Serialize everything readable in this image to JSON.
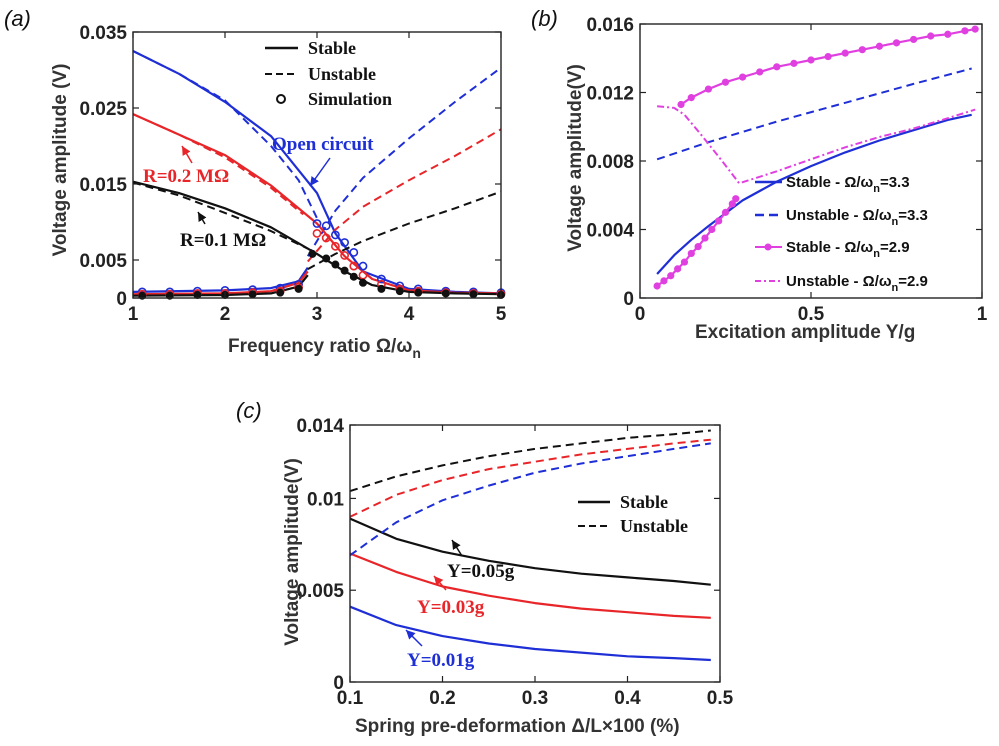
{
  "chart_data": [
    {
      "panel": "(a)",
      "type": "line",
      "xlabel": "Frequency ratio Ω/ω",
      "xlabel_sub": "n",
      "ylabel": "Voltage amplitude (V)",
      "xlim": [
        1,
        5
      ],
      "ylim": [
        0,
        0.035
      ],
      "xticks": [
        "1",
        "2",
        "3",
        "4",
        "5"
      ],
      "xtick_values": [
        1,
        2,
        3,
        4,
        5
      ],
      "yticks": [
        "0",
        "0.005",
        "0.015",
        "0.025",
        "0.035"
      ],
      "ytick_values": [
        0,
        0.005,
        0.015,
        0.025,
        0.035
      ],
      "legend": {
        "placement": "top-center",
        "entries": [
          {
            "label": "Stable",
            "style": "solid"
          },
          {
            "label": "Unstable",
            "style": "dashed"
          },
          {
            "label": "Simulation",
            "style": "circle"
          }
        ]
      },
      "annotations": [
        {
          "text": "Open circuit",
          "color": "#1f2fd6"
        },
        {
          "text": "R=0.2 MΩ",
          "color": "#e8262a"
        },
        {
          "text": "R=0.1 MΩ",
          "color": "#111111"
        }
      ],
      "series": [
        {
          "color": "#1f2fd6",
          "style": "dashed",
          "x": [
            1,
            1.5,
            2,
            2.5,
            2.8,
            3.0
          ],
          "y": [
            0.0325,
            0.0295,
            0.026,
            0.02,
            0.0155,
            0.0105
          ]
        },
        {
          "color": "#1f2fd6",
          "style": "solid",
          "x": [
            1,
            1.5,
            2,
            2.5,
            3,
            3.2,
            3.5,
            4,
            4.5,
            5
          ],
          "y": [
            0.0325,
            0.0295,
            0.0258,
            0.0213,
            0.0138,
            0.0085,
            0.0035,
            0.0012,
            0.0008,
            0.0006
          ]
        },
        {
          "color": "#1f2fd6",
          "style": "dashed",
          "x": [
            2.9,
            3.2,
            3.5,
            4,
            4.5,
            5
          ],
          "y": [
            0.0055,
            0.0115,
            0.0158,
            0.021,
            0.0258,
            0.0303
          ]
        },
        {
          "color": "#1f2fd6",
          "style": "solid",
          "x": [
            1,
            2,
            2.5,
            2.8,
            2.9
          ],
          "y": [
            0.0008,
            0.001,
            0.0013,
            0.0022,
            0.004
          ]
        },
        {
          "color": "#e8262a",
          "style": "dashed",
          "x": [
            1,
            1.5,
            2,
            2.5,
            2.85
          ],
          "y": [
            0.0242,
            0.0215,
            0.0185,
            0.0145,
            0.011
          ]
        },
        {
          "color": "#e8262a",
          "style": "solid",
          "x": [
            1,
            1.5,
            2,
            2.5,
            3,
            3.3,
            3.6,
            4,
            4.5,
            5
          ],
          "y": [
            0.0242,
            0.0215,
            0.0188,
            0.0148,
            0.0098,
            0.0055,
            0.0025,
            0.001,
            0.0007,
            0.0006
          ]
        },
        {
          "color": "#e8262a",
          "style": "dashed",
          "x": [
            2.9,
            3.2,
            3.5,
            4,
            4.5,
            5
          ],
          "y": [
            0.0048,
            0.009,
            0.012,
            0.0155,
            0.0187,
            0.0222
          ]
        },
        {
          "color": "#e8262a",
          "style": "solid",
          "x": [
            1,
            2,
            2.5,
            2.8,
            2.9
          ],
          "y": [
            0.0005,
            0.0006,
            0.0009,
            0.002,
            0.0035
          ]
        },
        {
          "color": "#111111",
          "style": "dashed",
          "x": [
            1,
            1.5,
            2,
            2.5,
            2.9
          ],
          "y": [
            0.0152,
            0.0135,
            0.0112,
            0.0088,
            0.0065
          ]
        },
        {
          "color": "#111111",
          "style": "solid",
          "x": [
            1,
            1.5,
            2,
            2.5,
            3,
            3.3,
            3.6,
            4,
            4.5,
            5
          ],
          "y": [
            0.0153,
            0.0138,
            0.0118,
            0.0093,
            0.0058,
            0.0035,
            0.0017,
            0.0008,
            0.0006,
            0.0005
          ]
        },
        {
          "color": "#111111",
          "style": "dashed",
          "x": [
            2.9,
            3.2,
            3.5,
            4,
            4.5,
            5
          ],
          "y": [
            0.0038,
            0.0058,
            0.0075,
            0.0098,
            0.0118,
            0.014
          ]
        },
        {
          "color": "#111111",
          "style": "solid",
          "x": [
            1,
            2,
            2.5,
            2.8,
            2.9
          ],
          "y": [
            0.0003,
            0.0004,
            0.0006,
            0.0015,
            0.003
          ]
        },
        {
          "color": "#1f2fd6",
          "style": "circles",
          "x": [
            1.1,
            1.4,
            1.7,
            2.0,
            2.3,
            2.6,
            2.8,
            3.0,
            3.1,
            3.2,
            3.3,
            3.4,
            3.5,
            3.7,
            3.9,
            4.1,
            4.4,
            4.7,
            5.0
          ],
          "y": [
            0.0008,
            0.0008,
            0.0009,
            0.001,
            0.0011,
            0.0013,
            0.0018,
            0.0098,
            0.0095,
            0.0083,
            0.0073,
            0.006,
            0.0042,
            0.0025,
            0.0016,
            0.0012,
            0.0009,
            0.0008,
            0.0007
          ]
        },
        {
          "color": "#e8262a",
          "style": "circles",
          "x": [
            1.1,
            1.4,
            1.7,
            2.0,
            2.3,
            2.6,
            2.8,
            3.0,
            3.1,
            3.2,
            3.3,
            3.4,
            3.5,
            3.7,
            3.9,
            4.1,
            4.4,
            4.7,
            5.0
          ],
          "y": [
            0.0005,
            0.0005,
            0.0006,
            0.0006,
            0.0007,
            0.0009,
            0.0014,
            0.0085,
            0.0079,
            0.0068,
            0.0056,
            0.0042,
            0.003,
            0.0018,
            0.0012,
            0.0009,
            0.0007,
            0.0006,
            0.0005
          ]
        },
        {
          "color": "#111111",
          "style": "dots",
          "x": [
            1.1,
            1.4,
            1.7,
            2.0,
            2.3,
            2.6,
            2.8,
            2.95,
            3.1,
            3.2,
            3.3,
            3.4,
            3.5,
            3.7,
            3.9,
            4.1,
            4.4,
            4.7,
            5.0
          ],
          "y": [
            0.0003,
            0.0003,
            0.0004,
            0.0004,
            0.0005,
            0.0007,
            0.0012,
            0.0058,
            0.0052,
            0.0044,
            0.0036,
            0.0028,
            0.002,
            0.0012,
            0.0009,
            0.0007,
            0.0006,
            0.0005,
            0.0004
          ]
        }
      ]
    },
    {
      "panel": "(b)",
      "type": "line",
      "xlabel": "Excitation amplitude Y/g",
      "ylabel": "Voltage amplitude(V)",
      "xlim": [
        0,
        1
      ],
      "ylim": [
        0,
        0.016
      ],
      "xticks": [
        "0",
        "0.5",
        "1"
      ],
      "xtick_values": [
        0,
        0.5,
        1
      ],
      "yticks": [
        "0",
        "0.004",
        "0.008",
        "0.012",
        "0.016"
      ],
      "ytick_values": [
        0,
        0.004,
        0.008,
        0.012,
        0.016
      ],
      "legend": {
        "placement": "bottom-right",
        "entries": [
          {
            "label": "Stable - Ω/ω",
            "sub": "n",
            "value": "=3.3",
            "color": "#1f2fd6",
            "style": "solid"
          },
          {
            "label": "Unstable - Ω/ω",
            "sub": "n",
            "value": "=3.3",
            "color": "#1f2fd6",
            "style": "dashed"
          },
          {
            "label": "Stable - Ω/ω",
            "sub": "n",
            "value": "=2.9",
            "color": "#e040e0",
            "style": "solid-dots"
          },
          {
            "label": "Unstable - Ω/ω",
            "sub": "n",
            "value": "=2.9",
            "color": "#e040e0",
            "style": "dashdot"
          }
        ]
      },
      "series": [
        {
          "name": "Stable - Ω/ωn=3.3",
          "color": "#1f2fd6",
          "style": "solid",
          "x": [
            0.05,
            0.1,
            0.15,
            0.2,
            0.3,
            0.4,
            0.5,
            0.6,
            0.7,
            0.8,
            0.9,
            0.97
          ],
          "y": [
            0.0014,
            0.0025,
            0.0034,
            0.0042,
            0.0057,
            0.0068,
            0.0077,
            0.0085,
            0.0092,
            0.0098,
            0.0104,
            0.0107
          ]
        },
        {
          "name": "Unstable - Ω/ωn=3.3",
          "color": "#1f2fd6",
          "style": "dashed",
          "x": [
            0.05,
            0.2,
            0.4,
            0.6,
            0.8,
            0.97
          ],
          "y": [
            0.0081,
            0.0091,
            0.0103,
            0.0114,
            0.0125,
            0.0134
          ]
        },
        {
          "name": "Stable - Ω/ωn=2.9 (upper)",
          "color": "#e040e0",
          "style": "solid-dots",
          "x": [
            0.12,
            0.15,
            0.2,
            0.25,
            0.3,
            0.35,
            0.4,
            0.45,
            0.5,
            0.55,
            0.6,
            0.65,
            0.7,
            0.75,
            0.8,
            0.85,
            0.9,
            0.95,
            0.98
          ],
          "y": [
            0.0113,
            0.0117,
            0.0122,
            0.0126,
            0.0129,
            0.0132,
            0.0135,
            0.0137,
            0.0139,
            0.0141,
            0.0143,
            0.0145,
            0.0147,
            0.0149,
            0.0151,
            0.0153,
            0.0154,
            0.0156,
            0.0157
          ]
        },
        {
          "name": "Stable - Ω/ωn=2.9 (lower)",
          "color": "#e040e0",
          "style": "solid-dots",
          "x": [
            0.05,
            0.07,
            0.09,
            0.11,
            0.13,
            0.15,
            0.17,
            0.19,
            0.21,
            0.23,
            0.25,
            0.27,
            0.28
          ],
          "y": [
            0.0007,
            0.001,
            0.0013,
            0.0017,
            0.0021,
            0.0026,
            0.003,
            0.0035,
            0.004,
            0.0045,
            0.005,
            0.0055,
            0.0058
          ]
        },
        {
          "name": "Unstable - Ω/ωn=2.9",
          "color": "#e040e0",
          "style": "dashdot",
          "x": [
            0.05,
            0.1,
            0.13,
            0.18,
            0.24,
            0.29,
            0.4,
            0.5,
            0.6,
            0.7,
            0.8,
            0.9,
            0.98
          ],
          "y": [
            0.0112,
            0.0111,
            0.0107,
            0.0095,
            0.008,
            0.0067,
            0.0074,
            0.0081,
            0.0088,
            0.0094,
            0.0099,
            0.0105,
            0.011
          ]
        }
      ]
    },
    {
      "panel": "(c)",
      "type": "line",
      "xlabel": "Spring pre-deformation Δ/L×100 (%)",
      "ylabel": "Voltage amplitude(V)",
      "xlim": [
        0.1,
        0.5
      ],
      "ylim": [
        0,
        0.014
      ],
      "xticks": [
        "0.1",
        "0.2",
        "0.3",
        "0.4",
        "0.5"
      ],
      "xtick_values": [
        0.1,
        0.2,
        0.3,
        0.4,
        0.5
      ],
      "yticks": [
        "0",
        "0.005",
        "0.01",
        "0.014"
      ],
      "ytick_values": [
        0,
        0.005,
        0.01,
        0.014
      ],
      "legend": {
        "placement": "top-right",
        "entries": [
          {
            "label": "Stable",
            "style": "solid"
          },
          {
            "label": "Unstable",
            "style": "dashed"
          }
        ]
      },
      "annotations": [
        {
          "text": "Y=0.05g",
          "color": "#111111"
        },
        {
          "text": "Y=0.03g",
          "color": "#e8262a"
        },
        {
          "text": "Y=0.01g",
          "color": "#1f2fd6"
        }
      ],
      "series": [
        {
          "color": "#111111",
          "style": "solid",
          "x": [
            0.1,
            0.15,
            0.2,
            0.25,
            0.3,
            0.35,
            0.4,
            0.45,
            0.49
          ],
          "y": [
            0.0089,
            0.0078,
            0.0071,
            0.0066,
            0.0062,
            0.0059,
            0.0057,
            0.0055,
            0.0053
          ]
        },
        {
          "color": "#111111",
          "style": "dashed",
          "x": [
            0.1,
            0.15,
            0.2,
            0.25,
            0.3,
            0.35,
            0.4,
            0.45,
            0.49
          ],
          "y": [
            0.0104,
            0.0112,
            0.0118,
            0.0123,
            0.0127,
            0.013,
            0.0133,
            0.0135,
            0.0137
          ]
        },
        {
          "color": "#e8262a",
          "style": "solid",
          "x": [
            0.1,
            0.15,
            0.2,
            0.25,
            0.3,
            0.35,
            0.4,
            0.45,
            0.49
          ],
          "y": [
            0.007,
            0.006,
            0.0052,
            0.0047,
            0.0043,
            0.004,
            0.0038,
            0.0036,
            0.0035
          ]
        },
        {
          "color": "#e8262a",
          "style": "dashed",
          "x": [
            0.1,
            0.15,
            0.2,
            0.25,
            0.3,
            0.35,
            0.4,
            0.45,
            0.49
          ],
          "y": [
            0.009,
            0.0102,
            0.011,
            0.0116,
            0.012,
            0.0124,
            0.0127,
            0.013,
            0.0132
          ]
        },
        {
          "color": "#1f2fd6",
          "style": "solid",
          "x": [
            0.1,
            0.15,
            0.2,
            0.25,
            0.3,
            0.35,
            0.4,
            0.45,
            0.49
          ],
          "y": [
            0.0041,
            0.0031,
            0.0025,
            0.0021,
            0.0018,
            0.0016,
            0.0014,
            0.0013,
            0.0012
          ]
        },
        {
          "color": "#1f2fd6",
          "style": "dashed",
          "x": [
            0.1,
            0.15,
            0.2,
            0.25,
            0.3,
            0.35,
            0.4,
            0.45,
            0.49
          ],
          "y": [
            0.0069,
            0.0087,
            0.0099,
            0.0107,
            0.0114,
            0.0119,
            0.0123,
            0.0127,
            0.013
          ]
        }
      ]
    }
  ]
}
